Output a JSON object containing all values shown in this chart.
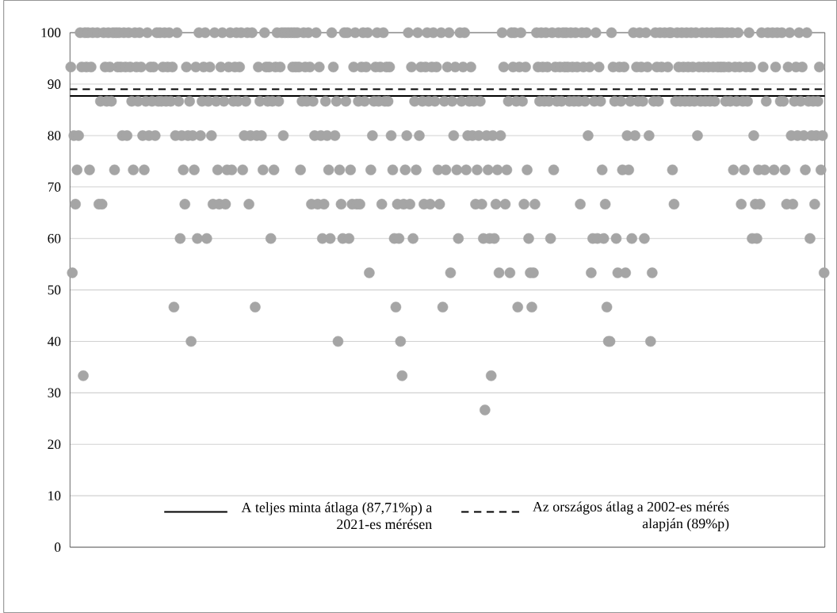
{
  "chart_data": {
    "type": "scatter",
    "categories": [
      null,
      null,
      null,
      null,
      null,
      null,
      null,
      null,
      null,
      null,
      null,
      null,
      null,
      null,
      null,
      null,
      null,
      null,
      null,
      null,
      null,
      null,
      null,
      null,
      null,
      null,
      null,
      null,
      null,
      null,
      null,
      null,
      null,
      null,
      null,
      null,
      null,
      null,
      null,
      null,
      null,
      null,
      null,
      null,
      null,
      null,
      null,
      null,
      null,
      null,
      null,
      null,
      null,
      null,
      null,
      null,
      null,
      null,
      null,
      null,
      null,
      null,
      null,
      null,
      null,
      null,
      null,
      null,
      null,
      null,
      null,
      null,
      null,
      null,
      null,
      null,
      null,
      null,
      null,
      null,
      null,
      null,
      null,
      null,
      null,
      null,
      null,
      null,
      null,
      null,
      null,
      null,
      null,
      null,
      null,
      null,
      null,
      null,
      null,
      null,
      null,
      null,
      null,
      null,
      null,
      null,
      null,
      null,
      null,
      null,
      null,
      null,
      null,
      null,
      null,
      null,
      null,
      null,
      null,
      null,
      null,
      null,
      null,
      null,
      null,
      null,
      null,
      null,
      null,
      null,
      null,
      null,
      null,
      null,
      null,
      null,
      null,
      null,
      null,
      null,
      null,
      null,
      null,
      null,
      null,
      null,
      null,
      null,
      null,
      null,
      null,
      null,
      null,
      null,
      null,
      null,
      null,
      null,
      null,
      null,
      null,
      null,
      null,
      null,
      null,
      null,
      null,
      null,
      null,
      null,
      null,
      null,
      null,
      null,
      null,
      null,
      null,
      null,
      null,
      null,
      null,
      null,
      null,
      null,
      null,
      null,
      null,
      null,
      null,
      null,
      null,
      null,
      null,
      null,
      null,
      null,
      null,
      null,
      null,
      null,
      null,
      null,
      null,
      null,
      null,
      null,
      null,
      null,
      null,
      null,
      null,
      null,
      null,
      null,
      null,
      null,
      null,
      null,
      null,
      null,
      null,
      null,
      null,
      null,
      null,
      null,
      null,
      null,
      null,
      null,
      null,
      null,
      null,
      null,
      null,
      null,
      null,
      null,
      null,
      null,
      null,
      null,
      null,
      null,
      null,
      null,
      null,
      null,
      null,
      null,
      null,
      null,
      null,
      null,
      null,
      null,
      null,
      null,
      null,
      null,
      null,
      null,
      null,
      null,
      null,
      null,
      null,
      null,
      null,
      null,
      null,
      null,
      null,
      null,
      null,
      null,
      null,
      null,
      null,
      null,
      null,
      null,
      null,
      null,
      null,
      null,
      null,
      null,
      null,
      null,
      null,
      null,
      null,
      null,
      null,
      null,
      null,
      null,
      null,
      null,
      null,
      null,
      null,
      null,
      null,
      null,
      null,
      null,
      null,
      null,
      null,
      null,
      null,
      null,
      null,
      null,
      null,
      null,
      null,
      null,
      null,
      null,
      null,
      null,
      null,
      null,
      null,
      null,
      null,
      null,
      null,
      null,
      null,
      null,
      null,
      null,
      null,
      null,
      null,
      null,
      null,
      null,
      null,
      null,
      null,
      null,
      null,
      null,
      null,
      null,
      null,
      null,
      null,
      null,
      null,
      null,
      null,
      null,
      null,
      null,
      null,
      null,
      null,
      null,
      null,
      null,
      null,
      null,
      null,
      null,
      null,
      null,
      null,
      null,
      null,
      null,
      null,
      null,
      null,
      null,
      null,
      null,
      null,
      null,
      null,
      null,
      null,
      null,
      null,
      null,
      null,
      null,
      null,
      null,
      null,
      null,
      null,
      null,
      null,
      null,
      null,
      null,
      null,
      null,
      null,
      null,
      null,
      null,
      null,
      null,
      null,
      null,
      null,
      null,
      null,
      null,
      null,
      null,
      null,
      null,
      null,
      null,
      null,
      null,
      null,
      null,
      null,
      null,
      null,
      null,
      null,
      null,
      null,
      null,
      null,
      null,
      null,
      null,
      null,
      null,
      null,
      null,
      null,
      null,
      null,
      null,
      null,
      null,
      null,
      null,
      null,
      null,
      null,
      null,
      null,
      null,
      null,
      null,
      null,
      null,
      null,
      null,
      null,
      null,
      null,
      null,
      null,
      null,
      null,
      null,
      null,
      null,
      null,
      null,
      null,
      null,
      null,
      null,
      null,
      null,
      null,
      null,
      null
    ],
    "values": [
      93.33,
      53.33,
      80,
      66.67,
      73.33,
      80,
      100,
      93.33,
      33.33,
      100,
      93.33,
      100,
      73.33,
      93.33,
      100,
      null,
      null,
      100,
      66.67,
      86.67,
      66.67,
      100,
      93.33,
      86.67,
      100,
      93.33,
      86.67,
      100,
      73.33,
      100,
      93.33,
      100,
      93.33,
      80,
      100,
      93.33,
      80,
      100,
      93.33,
      86.67,
      73.33,
      100,
      93.33,
      86.67,
      100,
      93.33,
      80,
      73.33,
      86.67,
      100,
      80,
      93.33,
      86.67,
      93.33,
      80,
      100,
      86.67,
      100,
      86.67,
      93.33,
      100,
      86.67,
      93.33,
      100,
      86.67,
      93.33,
      46.67,
      80,
      100,
      86.67,
      60,
      80,
      73.33,
      66.67,
      93.33,
      80,
      86.67,
      40,
      80,
      73.33,
      93.33,
      60,
      100,
      80,
      86.67,
      93.33,
      100,
      60,
      86.67,
      93.33,
      80,
      66.67,
      100,
      86.67,
      73.33,
      66.67,
      93.33,
      100,
      86.67,
      66.67,
      73.33,
      93.33,
      100,
      73.33,
      86.67,
      93.33,
      100,
      86.67,
      93.33,
      100,
      73.33,
      80,
      86.67,
      100,
      66.67,
      80,
      100,
      null,
      46.67,
      80,
      93.33,
      86.67,
      80,
      73.33,
      100,
      93.33,
      86.67,
      93.33,
      60,
      86.67,
      73.33,
      93.33,
      100,
      86.67,
      93.33,
      100,
      80,
      100,
      null,
      100,
      null,
      100,
      93.33,
      100,
      93.33,
      100,
      93.33,
      73.33,
      86.67,
      100,
      93.33,
      86.67,
      100,
      93.33,
      66.67,
      86.67,
      80,
      100,
      66.67,
      93.33,
      80,
      60,
      66.67,
      86.67,
      80,
      73.33,
      60,
      100,
      93.33,
      80,
      86.67,
      40,
      73.33,
      66.67,
      60,
      100,
      86.67,
      100,
      60,
      73.33,
      66.67,
      93.33,
      100,
      66.67,
      86.67,
      66.67,
      93.33,
      100,
      86.67,
      93.33,
      100,
      53.33,
      73.33,
      80,
      86.67,
      93.33,
      100,
      86.67,
      93.33,
      66.67,
      100,
      86.67,
      93.33,
      86.67,
      93.33,
      80,
      73.33,
      60,
      46.67,
      66.67,
      60,
      40,
      33.33,
      66.67,
      73.33,
      80,
      100,
      66.67,
      93.33,
      60,
      86.67,
      73.33,
      100,
      80,
      93.33,
      86.67,
      66.67,
      93.33,
      100,
      86.67,
      66.67,
      93.33,
      100,
      86.67,
      93.33,
      73.33,
      66.67,
      100,
      46.67,
      86.67,
      73.33,
      93.33,
      100,
      53.33,
      86.67,
      80,
      93.33,
      73.33,
      60,
      100,
      86.67,
      93.33,
      100,
      73.33,
      80,
      86.67,
      93.33,
      80,
      86.67,
      66.67,
      73.33,
      80,
      86.67,
      66.67,
      60,
      26.67,
      80,
      73.33,
      60,
      33.33,
      80,
      60,
      66.67,
      73.33,
      53.33,
      80,
      100,
      93.33,
      66.67,
      73.33,
      86.67,
      53.33,
      100,
      93.33,
      100,
      86.67,
      46.67,
      93.33,
      100,
      86.67,
      66.67,
      93.33,
      73.33,
      60,
      53.33,
      46.67,
      53.33,
      66.67,
      100,
      93.33,
      86.67,
      100,
      93.33,
      86.67,
      100,
      93.33,
      86.67,
      60,
      100,
      73.33,
      93.33,
      86.67,
      100,
      93.33,
      86.67,
      100,
      93.33,
      100,
      93.33,
      86.67,
      100,
      93.33,
      86.67,
      100,
      93.33,
      86.67,
      66.67,
      100,
      93.33,
      86.67,
      100,
      80,
      93.33,
      53.33,
      60,
      86.67,
      100,
      60,
      93.33,
      86.67,
      73.33,
      60,
      66.67,
      46.67,
      40,
      40,
      100,
      93.33,
      86.67,
      60,
      53.33,
      93.33,
      86.67,
      73.33,
      93.33,
      53.33,
      80,
      73.33,
      86.67,
      60,
      100,
      80,
      93.33,
      86.67,
      100,
      93.33,
      86.67,
      60,
      100,
      93.33,
      80,
      40,
      53.33,
      86.67,
      100,
      93.33,
      86.67,
      100,
      93.33,
      null,
      100,
      null,
      93.33,
      100,
      100,
      73.33,
      66.67,
      86.67,
      100,
      93.33,
      86.67,
      100,
      93.33,
      86.67,
      100,
      93.33,
      86.67,
      100,
      93.33,
      86.67,
      100,
      80,
      93.33,
      86.67,
      100,
      93.33,
      86.67,
      100,
      93.33,
      86.67,
      100,
      93.33,
      86.67,
      100,
      93.33,
      100,
      93.33,
      100,
      93.33,
      86.67,
      100,
      93.33,
      86.67,
      100,
      73.33,
      93.33,
      86.67,
      100,
      93.33,
      66.67,
      86.67,
      73.33,
      93.33,
      86.67,
      100,
      93.33,
      60,
      80,
      66.67,
      60,
      73.33,
      66.67,
      100,
      93.33,
      73.33,
      86.67,
      100,
      null,
      null,
      100,
      73.33,
      93.33,
      100,
      null,
      86.67,
      100,
      86.67,
      73.33,
      66.67,
      93.33,
      100,
      80,
      66.67,
      86.67,
      93.33,
      80,
      100,
      86.67,
      93.33,
      80,
      73.33,
      100,
      86.67,
      60,
      80,
      86.67,
      66.67,
      80,
      86.67,
      93.33,
      73.33,
      80,
      53.33
    ],
    "color": "#a5a5a5",
    "marker": "circle",
    "ylim": [
      0,
      100
    ],
    "yticks": [
      0,
      10,
      20,
      30,
      40,
      50,
      60,
      70,
      80,
      90,
      100
    ],
    "grid": "y",
    "tick_labels": "y",
    "ref_lines": [
      {
        "axis": "y",
        "value": 87.71,
        "label": "A teljes minta átlaga (87,71%p) a 2021-es mérésen",
        "color": "#000000",
        "line_style": "solid"
      },
      {
        "axis": "y",
        "value": 89,
        "label": "Az országos átlag a 2002-es mérés alapján (89%p)",
        "color": "#000000",
        "line_style": "dashed"
      }
    ],
    "legend": "bottom"
  }
}
